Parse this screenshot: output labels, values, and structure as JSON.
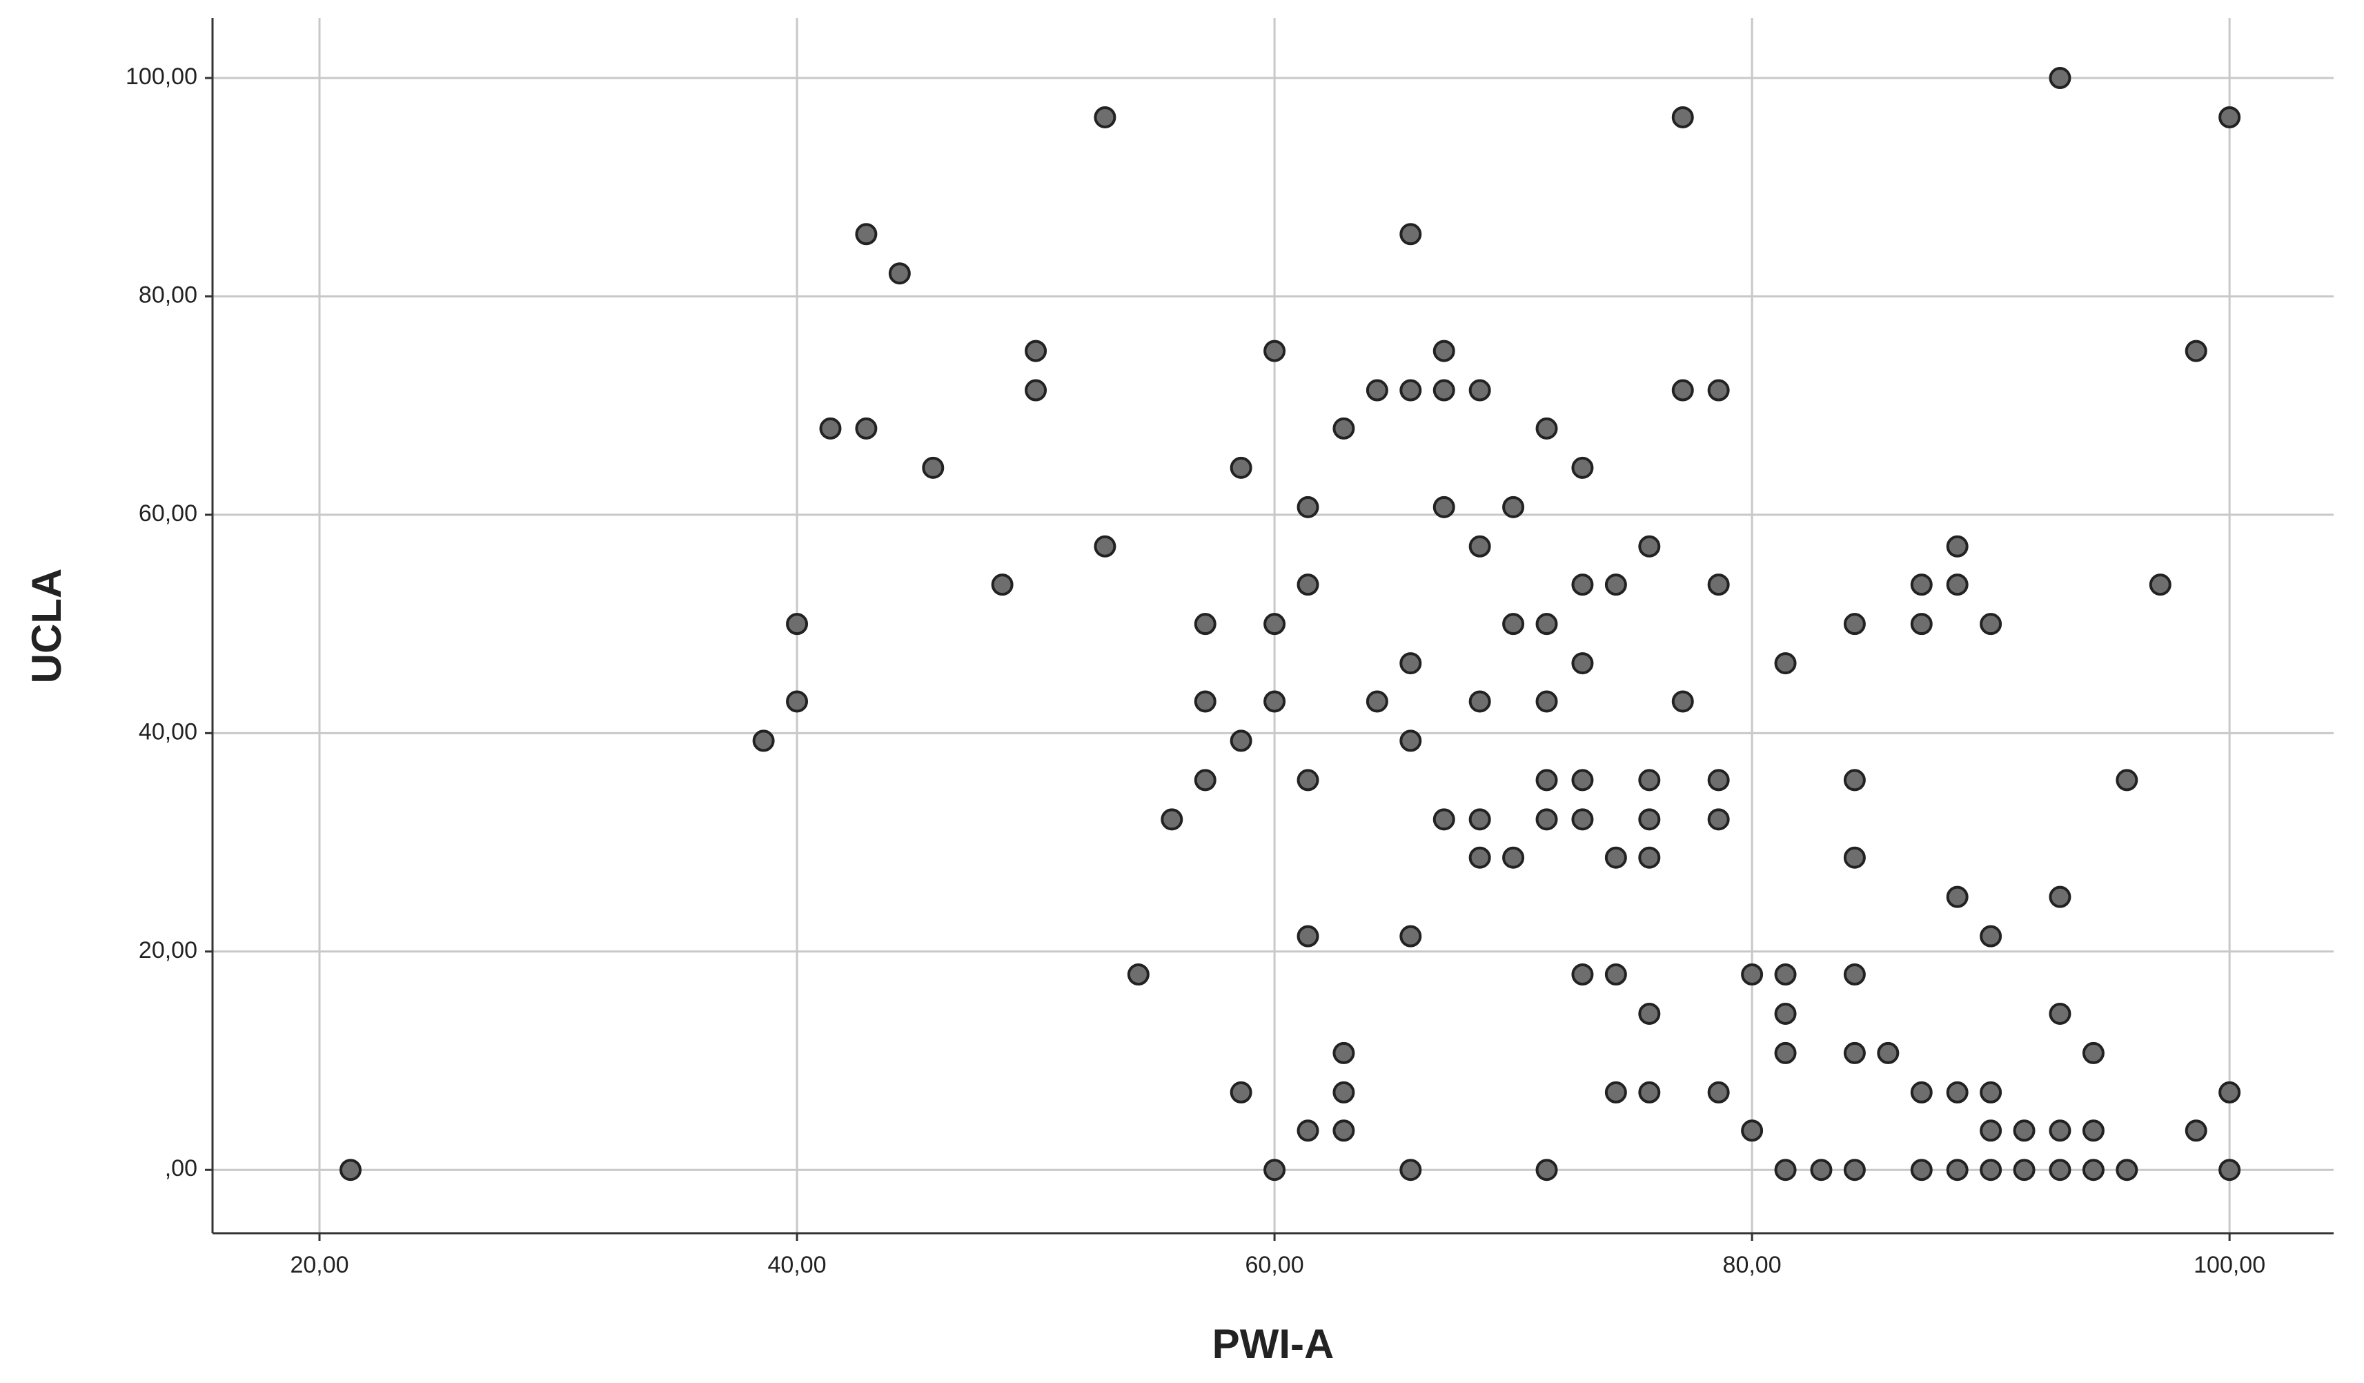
{
  "chart_data": {
    "type": "scatter",
    "x_label": "PWI-A",
    "y_label": "UCLA",
    "x": [
      21.3,
      38.6,
      40,
      40,
      41.4,
      42.9,
      42.9,
      44.3,
      45.7,
      48.6,
      50,
      50,
      52.9,
      52.9,
      54.3,
      55.7,
      57.1,
      57.1,
      57.1,
      58.6,
      58.6,
      58.6,
      60,
      60,
      60,
      60,
      61.4,
      61.4,
      61.4,
      61.4,
      61.4,
      62.9,
      62.9,
      62.9,
      62.9,
      64.3,
      64.3,
      65.7,
      65.7,
      65.7,
      65.7,
      65.7,
      65.7,
      67.1,
      67.1,
      67.1,
      67.1,
      68.6,
      68.6,
      68.6,
      68.6,
      68.6,
      70,
      70,
      70,
      71.4,
      71.4,
      71.4,
      71.4,
      71.4,
      71.4,
      72.9,
      72.9,
      72.9,
      72.9,
      72.9,
      72.9,
      74.3,
      74.3,
      74.3,
      74.3,
      75.7,
      75.7,
      75.7,
      75.7,
      75.7,
      75.7,
      77.1,
      77.1,
      77.1,
      78.6,
      78.6,
      78.6,
      78.6,
      78.6,
      80,
      80,
      81.4,
      81.4,
      81.4,
      81.4,
      81.4,
      82.9,
      84.3,
      84.3,
      84.3,
      84.3,
      84.3,
      84.3,
      85.7,
      87.1,
      87.1,
      87.1,
      87.1,
      88.6,
      88.6,
      88.6,
      88.6,
      88.6,
      90,
      90,
      90,
      90,
      90,
      91.4,
      91.4,
      92.9,
      92.9,
      92.9,
      92.9,
      92.9,
      94.3,
      94.3,
      94.3,
      95.7,
      95.7,
      97.1,
      98.6,
      98.6,
      100,
      100,
      100
    ],
    "values": [
      0,
      39.3,
      50,
      42.9,
      67.9,
      85.7,
      67.9,
      82.1,
      64.3,
      53.6,
      75,
      71.4,
      96.4,
      57.1,
      17.9,
      32.1,
      50,
      42.9,
      35.7,
      64.3,
      39.3,
      7.1,
      75,
      50,
      42.9,
      0,
      60.7,
      53.6,
      35.7,
      21.4,
      3.6,
      67.9,
      10.7,
      7.1,
      3.6,
      71.4,
      42.9,
      85.7,
      71.4,
      46.4,
      39.3,
      21.4,
      0,
      75,
      71.4,
      60.7,
      32.1,
      71.4,
      57.1,
      42.9,
      32.1,
      28.6,
      60.7,
      50,
      28.6,
      67.9,
      50,
      42.9,
      35.7,
      32.1,
      0,
      64.3,
      53.6,
      46.4,
      35.7,
      32.1,
      17.9,
      53.6,
      28.6,
      17.9,
      7.1,
      57.1,
      35.7,
      32.1,
      28.6,
      14.3,
      7.1,
      96.4,
      71.4,
      42.9,
      71.4,
      53.6,
      35.7,
      32.1,
      7.1,
      17.9,
      3.6,
      46.4,
      17.9,
      14.3,
      10.7,
      0,
      0,
      50,
      35.7,
      28.6,
      17.9,
      10.7,
      0,
      10.7,
      53.6,
      50,
      7.1,
      0,
      57.1,
      53.6,
      25,
      7.1,
      0,
      50,
      21.4,
      7.1,
      3.6,
      0,
      3.6,
      0,
      100,
      25,
      14.3,
      3.6,
      0,
      10.7,
      3.6,
      0,
      35.7,
      0,
      53.6,
      75,
      3.6,
      96.4,
      7.1,
      0
    ],
    "color": "#6e6e6e",
    "xlim": [
      15.52,
      104.36
    ],
    "ylim": [
      -5.8,
      105.5
    ],
    "xticks": [
      {
        "value": 20,
        "label": "20,00"
      },
      {
        "value": 40,
        "label": "40,00"
      },
      {
        "value": 60,
        "label": "60,00"
      },
      {
        "value": 80,
        "label": "80,00"
      },
      {
        "value": 100,
        "label": "100,00"
      }
    ],
    "yticks": [
      {
        "value": 0,
        "label": ",00"
      },
      {
        "value": 20,
        "label": "20,00"
      },
      {
        "value": 40,
        "label": "40,00"
      },
      {
        "value": 60,
        "label": "60,00"
      },
      {
        "value": 80,
        "label": "80,00"
      },
      {
        "value": 100,
        "label": "100,00"
      }
    ],
    "grid": true
  }
}
